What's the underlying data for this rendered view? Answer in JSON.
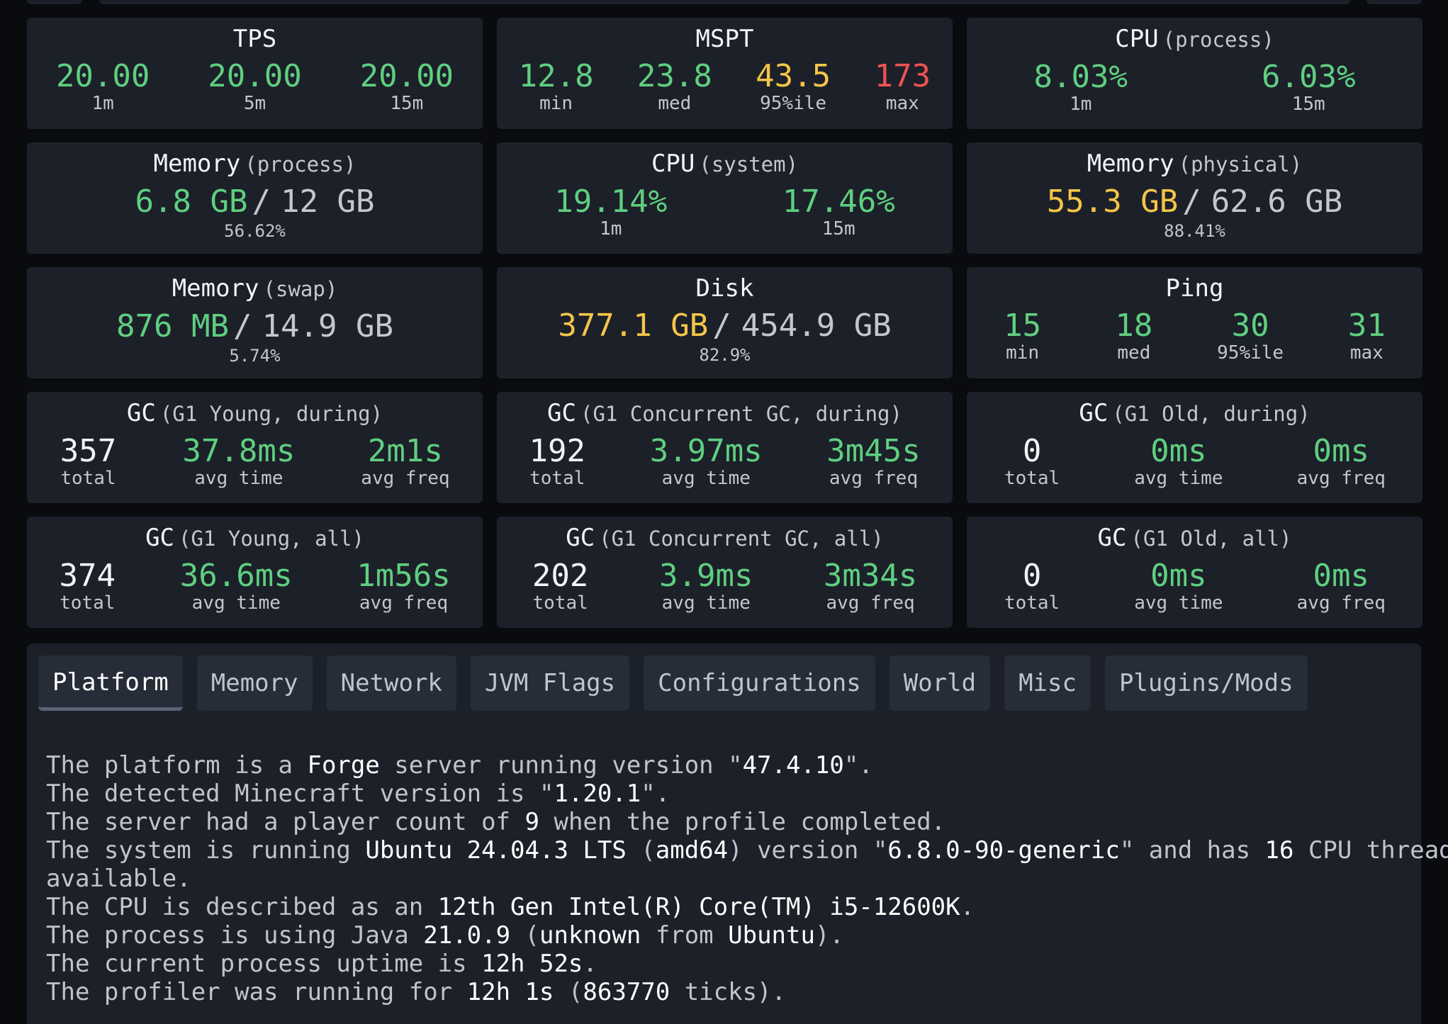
{
  "colors": {
    "good": "#5fcf80",
    "warn": "#f5c548",
    "bad": "#f05252",
    "card": "#1c2029",
    "background": "#090b0e"
  },
  "cards": [
    {
      "title": "TPS",
      "sub": "",
      "stats": [
        {
          "value": "20.00",
          "label": "1m",
          "color": "good"
        },
        {
          "value": "20.00",
          "label": "5m",
          "color": "good"
        },
        {
          "value": "20.00",
          "label": "15m",
          "color": "good"
        }
      ]
    },
    {
      "title": "MSPT",
      "sub": "",
      "stats": [
        {
          "value": "12.8",
          "label": "min",
          "color": "good"
        },
        {
          "value": "23.8",
          "label": "med",
          "color": "good"
        },
        {
          "value": "43.5",
          "label": "95%ile",
          "color": "warn"
        },
        {
          "value": "173",
          "label": "max",
          "color": "bad"
        }
      ]
    },
    {
      "title": "CPU",
      "sub": "(process)",
      "stats": [
        {
          "value": "8.03%",
          "label": "1m",
          "color": "good"
        },
        {
          "value": "6.03%",
          "label": "15m",
          "color": "good"
        }
      ]
    },
    {
      "title": "Memory",
      "sub": "(process)",
      "used": "6.8 GB",
      "total": "12 GB",
      "percent": "56.62%",
      "color": "good"
    },
    {
      "title": "CPU",
      "sub": "(system)",
      "stats": [
        {
          "value": "19.14%",
          "label": "1m",
          "color": "good"
        },
        {
          "value": "17.46%",
          "label": "15m",
          "color": "good"
        }
      ]
    },
    {
      "title": "Memory",
      "sub": "(physical)",
      "used": "55.3 GB",
      "total": "62.6 GB",
      "percent": "88.41%",
      "color": "warn"
    },
    {
      "title": "Memory",
      "sub": "(swap)",
      "used": "876 MB",
      "total": "14.9 GB",
      "percent": "5.74%",
      "color": "good"
    },
    {
      "title": "Disk",
      "sub": "",
      "used": "377.1 GB",
      "total": "454.9 GB",
      "percent": "82.9%",
      "color": "warn"
    },
    {
      "title": "Ping",
      "sub": "",
      "stats": [
        {
          "value": "15",
          "label": "min",
          "color": "good"
        },
        {
          "value": "18",
          "label": "med",
          "color": "good"
        },
        {
          "value": "30",
          "label": "95%ile",
          "color": "good"
        },
        {
          "value": "31",
          "label": "max",
          "color": "good"
        }
      ]
    },
    {
      "title": "GC",
      "sub": "(G1 Young, during)",
      "stats": [
        {
          "value": "357",
          "label": "total",
          "color": "white"
        },
        {
          "value": "37.8ms",
          "label": "avg time",
          "color": "good"
        },
        {
          "value": "2m1s",
          "label": "avg freq",
          "color": "good"
        }
      ]
    },
    {
      "title": "GC",
      "sub": "(G1 Concurrent GC, during)",
      "stats": [
        {
          "value": "192",
          "label": "total",
          "color": "white"
        },
        {
          "value": "3.97ms",
          "label": "avg time",
          "color": "good"
        },
        {
          "value": "3m45s",
          "label": "avg freq",
          "color": "good"
        }
      ]
    },
    {
      "title": "GC",
      "sub": "(G1 Old, during)",
      "stats": [
        {
          "value": "0",
          "label": "total",
          "color": "white"
        },
        {
          "value": "0ms",
          "label": "avg time",
          "color": "good"
        },
        {
          "value": "0ms",
          "label": "avg freq",
          "color": "good"
        }
      ]
    },
    {
      "title": "GC",
      "sub": "(G1 Young, all)",
      "stats": [
        {
          "value": "374",
          "label": "total",
          "color": "white"
        },
        {
          "value": "36.6ms",
          "label": "avg time",
          "color": "good"
        },
        {
          "value": "1m56s",
          "label": "avg freq",
          "color": "good"
        }
      ]
    },
    {
      "title": "GC",
      "sub": "(G1 Concurrent GC, all)",
      "stats": [
        {
          "value": "202",
          "label": "total",
          "color": "white"
        },
        {
          "value": "3.9ms",
          "label": "avg time",
          "color": "good"
        },
        {
          "value": "3m34s",
          "label": "avg freq",
          "color": "good"
        }
      ]
    },
    {
      "title": "GC",
      "sub": "(G1 Old, all)",
      "stats": [
        {
          "value": "0",
          "label": "total",
          "color": "white"
        },
        {
          "value": "0ms",
          "label": "avg time",
          "color": "good"
        },
        {
          "value": "0ms",
          "label": "avg freq",
          "color": "good"
        }
      ]
    }
  ],
  "tabs": [
    "Platform",
    "Memory",
    "Network",
    "JVM Flags",
    "Configurations",
    "World",
    "Misc",
    "Plugins/Mods"
  ],
  "active_tab": "Platform",
  "platform_info": [
    [
      {
        "t": "The platform is a "
      },
      {
        "t": "Forge",
        "hl": true
      },
      {
        "t": " server running version \""
      },
      {
        "t": "47.4.10",
        "hl": true
      },
      {
        "t": "\"."
      }
    ],
    [
      {
        "t": "The detected Minecraft version is \""
      },
      {
        "t": "1.20.1",
        "hl": true
      },
      {
        "t": "\"."
      }
    ],
    [
      {
        "t": "The server had a player count of "
      },
      {
        "t": "9",
        "hl": true
      },
      {
        "t": " when the profile completed."
      }
    ],
    [
      {
        "t": "The system is running "
      },
      {
        "t": "Ubuntu 24.04.3 LTS",
        "hl": true
      },
      {
        "t": " ("
      },
      {
        "t": "amd64",
        "hl": true
      },
      {
        "t": ") version \""
      },
      {
        "t": "6.8.0-90-generic",
        "hl": true
      },
      {
        "t": "\" and has "
      },
      {
        "t": "16",
        "hl": true
      },
      {
        "t": " CPU threads"
      }
    ],
    [
      {
        "t": "available."
      }
    ],
    [
      {
        "t": "The CPU is described as an "
      },
      {
        "t": "12th Gen Intel(R) Core(TM) i5-12600K",
        "hl": true
      },
      {
        "t": "."
      }
    ],
    [
      {
        "t": "The process is using Java "
      },
      {
        "t": "21.0.9",
        "hl": true
      },
      {
        "t": " ("
      },
      {
        "t": "unknown",
        "hl": true
      },
      {
        "t": " from "
      },
      {
        "t": "Ubuntu",
        "hl": true
      },
      {
        "t": ")."
      }
    ],
    [
      {
        "t": "The current process uptime is "
      },
      {
        "t": "12h 52s",
        "hl": true
      },
      {
        "t": "."
      }
    ],
    [
      {
        "t": "The profiler was running for "
      },
      {
        "t": "12h 1s",
        "hl": true
      },
      {
        "t": " ("
      },
      {
        "t": "863770",
        "hl": true
      },
      {
        "t": " ticks)."
      }
    ]
  ]
}
